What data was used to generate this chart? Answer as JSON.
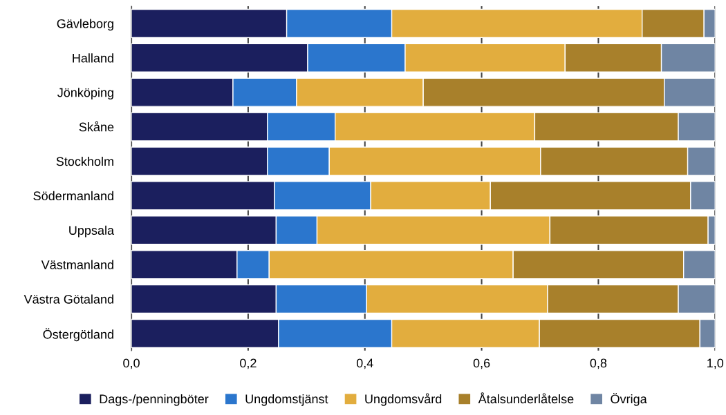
{
  "chart_data": {
    "type": "bar",
    "orientation": "horizontal",
    "stacked": true,
    "categories": [
      "Gävleborg",
      "Halland",
      "Jönköping",
      "Skåne",
      "Stockholm",
      "Södermanland",
      "Uppsala",
      "Västmanland",
      "Västra Götaland",
      "Östergötland"
    ],
    "series": [
      {
        "name": "Dags-/penningböter",
        "color": "#1b1f5e",
        "values": [
          0.266,
          0.302,
          0.174,
          0.233,
          0.233,
          0.245,
          0.248,
          0.181,
          0.248,
          0.252
        ]
      },
      {
        "name": "Ungdomstjänst",
        "color": "#2b76cd",
        "values": [
          0.18,
          0.167,
          0.109,
          0.116,
          0.106,
          0.165,
          0.07,
          0.055,
          0.155,
          0.194
        ]
      },
      {
        "name": "Ungdomsvård",
        "color": "#e2ad3e",
        "values": [
          0.429,
          0.274,
          0.217,
          0.342,
          0.362,
          0.205,
          0.399,
          0.418,
          0.31,
          0.253
        ]
      },
      {
        "name": "Åtalsunderlåtelse",
        "color": "#a8802b",
        "values": [
          0.106,
          0.165,
          0.413,
          0.246,
          0.252,
          0.343,
          0.271,
          0.292,
          0.224,
          0.275
        ]
      },
      {
        "name": "Övriga",
        "color": "#6f85a3",
        "values": [
          0.019,
          0.092,
          0.087,
          0.063,
          0.047,
          0.042,
          0.012,
          0.054,
          0.063,
          0.026
        ]
      }
    ],
    "xlim": [
      0,
      1
    ],
    "xticks": [
      {
        "value": 0,
        "label": "0,0"
      },
      {
        "value": 0.2,
        "label": "0,2"
      },
      {
        "value": 0.4,
        "label": "0,4"
      },
      {
        "value": 0.6,
        "label": "0,6"
      },
      {
        "value": 0.8,
        "label": "0,8"
      },
      {
        "value": 1,
        "label": "1,0"
      }
    ],
    "grid": "x",
    "legend": "bottom"
  }
}
